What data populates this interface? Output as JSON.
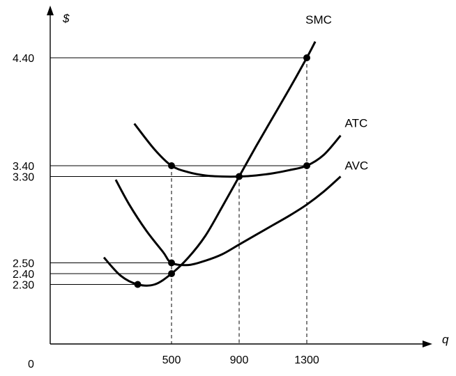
{
  "chart_data": {
    "type": "line",
    "title": "",
    "xlabel": "q",
    "ylabel": "$",
    "origin_label": "0",
    "x_ticks": [
      "500",
      "900",
      "1300"
    ],
    "y_ticks": [
      "2.30",
      "2.40",
      "2.50",
      "3.30",
      "3.40",
      "4.40"
    ],
    "grid": false,
    "series": [
      {
        "name": "SMC",
        "x": [
          100,
          200,
          300,
          400,
          500,
          600,
          700,
          800,
          900,
          1000,
          1100,
          1200,
          1300,
          1350
        ],
        "y": [
          2.55,
          2.38,
          2.3,
          2.3,
          2.4,
          2.55,
          2.75,
          3.02,
          3.3,
          3.58,
          3.85,
          4.12,
          4.4,
          4.55
        ]
      },
      {
        "name": "ATC",
        "x": [
          280,
          400,
          500,
          600,
          700,
          800,
          900,
          1000,
          1100,
          1200,
          1300,
          1400,
          1500
        ],
        "y": [
          3.79,
          3.55,
          3.4,
          3.34,
          3.31,
          3.3,
          3.3,
          3.31,
          3.33,
          3.36,
          3.4,
          3.5,
          3.68
        ]
      },
      {
        "name": "AVC",
        "x": [
          170,
          250,
          350,
          450,
          500,
          600,
          700,
          800,
          900,
          1000,
          1100,
          1200,
          1300,
          1400,
          1500
        ],
        "y": [
          3.27,
          3.04,
          2.8,
          2.6,
          2.5,
          2.48,
          2.52,
          2.58,
          2.67,
          2.76,
          2.85,
          2.94,
          3.04,
          3.16,
          3.3
        ]
      }
    ],
    "points": [
      {
        "x": 500,
        "y": 3.4
      },
      {
        "x": 900,
        "y": 3.3
      },
      {
        "x": 1300,
        "y": 3.4
      },
      {
        "x": 1300,
        "y": 4.4
      },
      {
        "x": 500,
        "y": 2.5
      },
      {
        "x": 500,
        "y": 2.4
      },
      {
        "x": 300,
        "y": 2.3
      }
    ],
    "h_guides": [
      {
        "y": 4.4,
        "x_end": 1300
      },
      {
        "y": 3.4,
        "x_end": 1300
      },
      {
        "y": 3.3,
        "x_end": 900
      },
      {
        "y": 2.5,
        "x_end": 500
      },
      {
        "y": 2.4,
        "x_end": 500
      },
      {
        "y": 2.3,
        "x_end": 300
      }
    ],
    "v_guides": [
      {
        "x": 500,
        "y_top": 3.4
      },
      {
        "x": 900,
        "y_top": 3.3
      },
      {
        "x": 1300,
        "y_top": 4.4
      }
    ]
  }
}
